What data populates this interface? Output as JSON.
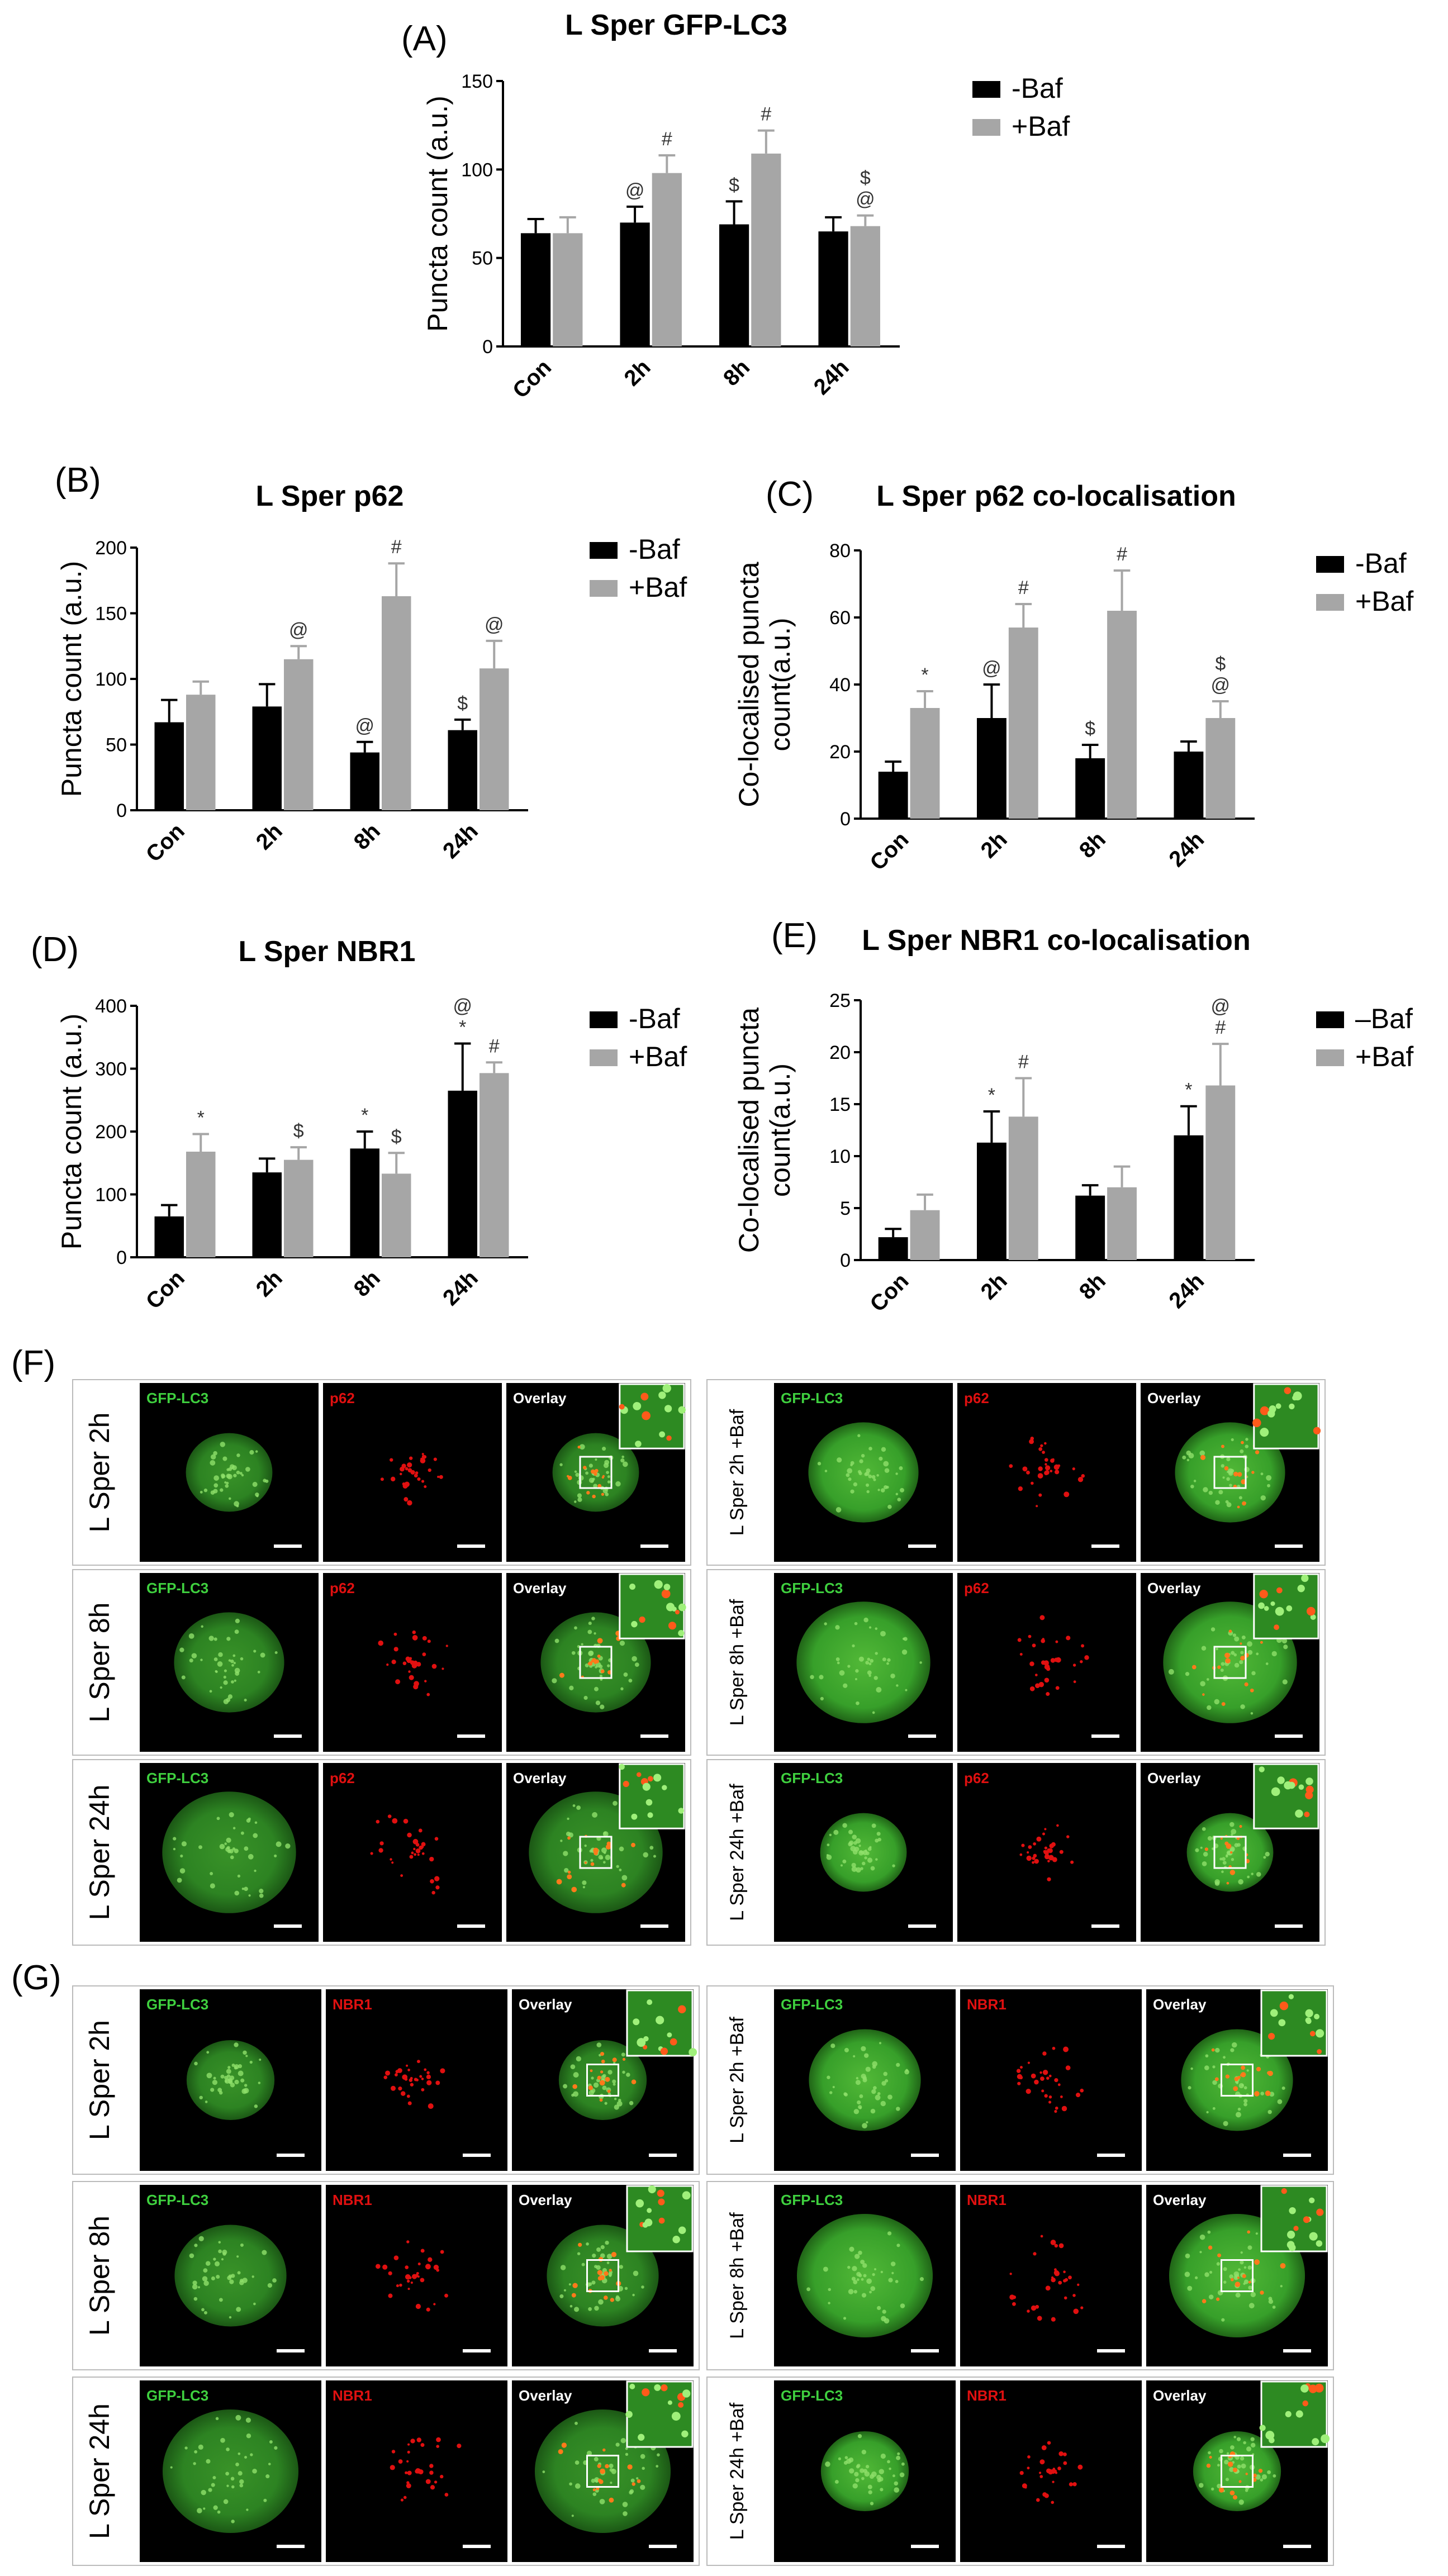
{
  "panel_letters": {
    "A": "(A)",
    "B": "(B)",
    "C": "(C)",
    "D": "(D)",
    "E": "(E)",
    "F": "(F)",
    "G": "(G)"
  },
  "colors": {
    "minus_baf": "#000000",
    "plus_baf": "#a6a6a6",
    "gfp": "#2faa2f",
    "red": "#e01010",
    "bg": "#000000"
  },
  "chart_data": [
    {
      "id": "A",
      "type": "bar",
      "title": "L Sper GFP-LC3",
      "xlabel": "",
      "ylabel": "Puncta count (a.u.)",
      "ylim": [
        0,
        150
      ],
      "yticks": [
        0,
        50,
        100,
        150
      ],
      "categories": [
        "Con",
        "2h",
        "8h",
        "24h"
      ],
      "series": [
        {
          "name": "-Baf",
          "values": [
            64,
            70,
            69,
            65
          ],
          "errors": [
            8,
            9,
            13,
            8
          ]
        },
        {
          "name": "+Baf",
          "values": [
            64,
            98,
            109,
            68
          ],
          "errors": [
            9,
            10,
            13,
            6
          ]
        }
      ],
      "annotations": [
        [
          "",
          ""
        ],
        [
          "@",
          "#"
        ],
        [
          "$",
          "#"
        ],
        [
          "",
          "$\n@"
        ]
      ],
      "legend": "top-right"
    },
    {
      "id": "B",
      "type": "bar",
      "title": "L Sper p62",
      "xlabel": "",
      "ylabel": "Puncta count (a.u.)",
      "ylim": [
        0,
        200
      ],
      "yticks": [
        0,
        50,
        100,
        150,
        200
      ],
      "categories": [
        "Con",
        "2h",
        "8h",
        "24h"
      ],
      "series": [
        {
          "name": "-Baf",
          "values": [
            67,
            79,
            44,
            61
          ],
          "errors": [
            17,
            17,
            8,
            8
          ]
        },
        {
          "name": "+Baf",
          "values": [
            88,
            115,
            163,
            108
          ],
          "errors": [
            10,
            10,
            25,
            21
          ]
        }
      ],
      "annotations": [
        [
          "",
          ""
        ],
        [
          "",
          "@"
        ],
        [
          "@",
          "#"
        ],
        [
          "$",
          "@"
        ]
      ],
      "legend": "top-right"
    },
    {
      "id": "C",
      "type": "bar",
      "title": "L Sper p62 co-localisation",
      "xlabel": "",
      "ylabel": "Co-localised puncta\ncount(a.u.)",
      "ylim": [
        0,
        80
      ],
      "yticks": [
        0,
        20,
        40,
        60,
        80
      ],
      "categories": [
        "Con",
        "2h",
        "8h",
        "24h"
      ],
      "series": [
        {
          "name": "-Baf",
          "values": [
            14,
            30,
            18,
            20
          ],
          "errors": [
            3,
            10,
            4,
            3
          ]
        },
        {
          "name": "+Baf",
          "values": [
            33,
            57,
            62,
            30
          ],
          "errors": [
            5,
            7,
            12,
            5
          ]
        }
      ],
      "annotations": [
        [
          "",
          "*"
        ],
        [
          "@",
          "#"
        ],
        [
          "$",
          "#"
        ],
        [
          "",
          "$\n@"
        ]
      ],
      "legend": "top-right"
    },
    {
      "id": "D",
      "type": "bar",
      "title": "L Sper NBR1",
      "xlabel": "",
      "ylabel": "Puncta count (a.u.)",
      "ylim": [
        0,
        400
      ],
      "yticks": [
        0,
        100,
        200,
        300,
        400
      ],
      "categories": [
        "Con",
        "2h",
        "8h",
        "24h"
      ],
      "series": [
        {
          "name": "-Baf",
          "values": [
            65,
            135,
            173,
            265
          ],
          "errors": [
            18,
            22,
            27,
            75
          ]
        },
        {
          "name": "+Baf",
          "values": [
            168,
            155,
            133,
            293
          ],
          "errors": [
            28,
            20,
            33,
            17
          ]
        }
      ],
      "annotations": [
        [
          "",
          "*"
        ],
        [
          "",
          "$"
        ],
        [
          "*",
          "$"
        ],
        [
          "@\n*",
          "#"
        ]
      ],
      "legend": "top-right"
    },
    {
      "id": "E",
      "type": "bar",
      "title": "L Sper NBR1 co-localisation",
      "xlabel": "",
      "ylabel": "Co-localised puncta\ncount(a.u.)",
      "ylim": [
        0,
        25
      ],
      "yticks": [
        0,
        5,
        10,
        15,
        20,
        25
      ],
      "categories": [
        "Con",
        "2h",
        "8h",
        "24h"
      ],
      "series": [
        {
          "name": "–Baf",
          "values": [
            2.2,
            11.3,
            6.2,
            12.0
          ],
          "errors": [
            0.8,
            3.0,
            1.0,
            2.8
          ]
        },
        {
          "name": "+Baf",
          "values": [
            4.8,
            13.8,
            7.0,
            16.8
          ],
          "errors": [
            1.5,
            3.7,
            2.0,
            4.0
          ]
        }
      ],
      "annotations": [
        [
          "",
          ""
        ],
        [
          "*",
          "#"
        ],
        [
          "",
          ""
        ],
        [
          "*",
          "@\n#"
        ]
      ],
      "legend": "top-right"
    }
  ],
  "micrographs": {
    "F": {
      "left_rows": [
        "L Sper 2h",
        "L Sper 8h",
        "L Sper 24h"
      ],
      "right_rows": [
        "L Sper 2h +Baf",
        "L Sper 8h +Baf",
        "L Sper 24h +Baf"
      ],
      "channels": [
        "GFP-LC3",
        "p62",
        "Overlay"
      ]
    },
    "G": {
      "left_rows": [
        "L Sper 2h",
        "L Sper 8h",
        "L Sper 24h"
      ],
      "right_rows": [
        "L Sper 2h +Baf",
        "L Sper 8h +Baf",
        "L Sper 24h +Baf"
      ],
      "channels": [
        "GFP-LC3",
        "NBR1",
        "Overlay"
      ]
    }
  }
}
